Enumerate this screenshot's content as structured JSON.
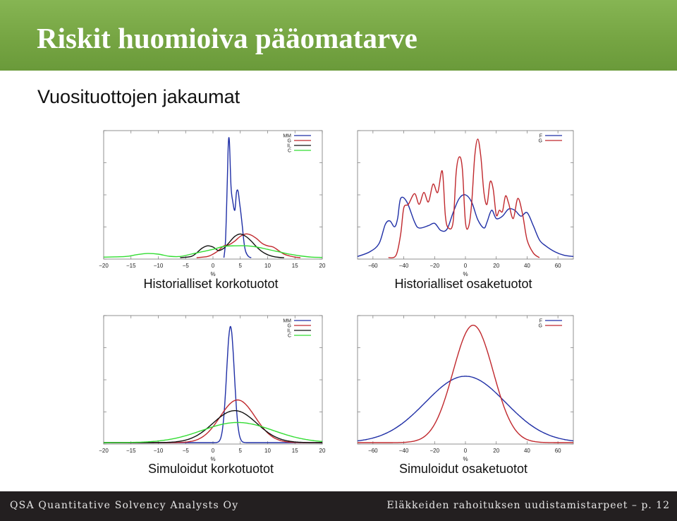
{
  "slide": {
    "title": "Riskit huomioiva pääomatarve",
    "subtitle": "Vuosituottojen jakaumat"
  },
  "footer": {
    "left": "QSA Quantitative Solvency Analysts Oy",
    "right": "Eläkkeiden rahoituksen uudistamistarpeet – p. 12"
  },
  "colors": {
    "title_bar": "#7aab47",
    "footer_bg": "#231f20"
  },
  "chart_data": [
    {
      "type": "line",
      "title": "Historialliset korkotuotot",
      "xlabel": "%",
      "xlim": [
        -20,
        20
      ],
      "xticks": [
        "−20",
        "−15",
        "−10",
        "−5",
        "0",
        "5",
        "10",
        "15",
        "20"
      ],
      "legend_position": "top-right",
      "series": [
        {
          "name": "MM",
          "color": "#1f2fa6",
          "x": [
            2,
            2.3,
            2.6,
            2.8,
            3,
            3.3,
            3.6,
            4,
            4.3,
            4.6,
            4.9,
            5.1,
            5.4,
            5.7,
            6,
            6.5,
            7
          ],
          "y": [
            0,
            0.15,
            0.6,
            0.95,
            0.98,
            0.6,
            0.48,
            0.4,
            0.55,
            0.56,
            0.45,
            0.38,
            0.25,
            0.12,
            0.05,
            0.01,
            0
          ]
        },
        {
          "name": "G",
          "color": "#c0282d",
          "x": [
            -3,
            -1,
            0,
            1,
            2,
            3,
            4,
            5,
            6,
            7,
            8,
            9,
            10,
            11,
            12,
            13,
            14,
            15,
            16
          ],
          "y": [
            0,
            0.01,
            0.03,
            0.06,
            0.1,
            0.11,
            0.14,
            0.18,
            0.2,
            0.19,
            0.16,
            0.12,
            0.1,
            0.09,
            0.06,
            0.03,
            0.015,
            0.005,
            0
          ]
        },
        {
          "name": "IL",
          "color": "#111111",
          "x": [
            -6,
            -4,
            -3,
            -2,
            -1,
            0,
            1,
            2,
            3,
            4,
            5,
            6,
            7,
            8,
            9,
            10,
            11,
            12,
            13
          ],
          "y": [
            0,
            0.01,
            0.04,
            0.08,
            0.1,
            0.09,
            0.06,
            0.08,
            0.13,
            0.18,
            0.2,
            0.18,
            0.14,
            0.09,
            0.05,
            0.025,
            0.01,
            0.003,
            0
          ]
        },
        {
          "name": "C",
          "color": "#33dd33",
          "x": [
            -20,
            -16,
            -14,
            -12,
            -10,
            -8,
            -6,
            -4,
            -2,
            0,
            2,
            4,
            6,
            8,
            10,
            12,
            14,
            16,
            18,
            20
          ],
          "y": [
            0.005,
            0.01,
            0.025,
            0.035,
            0.03,
            0.012,
            0.01,
            0.03,
            0.05,
            0.07,
            0.095,
            0.1,
            0.1,
            0.09,
            0.07,
            0.05,
            0.03,
            0.015,
            0.005,
            0.002
          ]
        }
      ]
    },
    {
      "type": "line",
      "title": "Historialliset osaketuotot",
      "xlabel": "%",
      "xlim": [
        -70,
        70
      ],
      "xticks": [
        "−60",
        "−40",
        "−20",
        "0",
        "20",
        "40",
        "60"
      ],
      "legend_position": "top-right",
      "series": [
        {
          "name": "F",
          "color": "#1f2fa6",
          "x": [
            -70,
            -62,
            -56,
            -52,
            -49,
            -46,
            -44,
            -42,
            -38,
            -33,
            -30,
            -24,
            -20,
            -16,
            -12,
            -8,
            -4,
            0,
            4,
            8,
            12,
            14,
            17,
            20,
            24,
            28,
            32,
            36,
            40,
            44,
            48,
            52,
            58,
            64,
            70
          ],
          "y": [
            0.01,
            0.05,
            0.12,
            0.28,
            0.31,
            0.26,
            0.33,
            0.5,
            0.47,
            0.3,
            0.25,
            0.27,
            0.29,
            0.23,
            0.24,
            0.38,
            0.5,
            0.53,
            0.47,
            0.32,
            0.25,
            0.3,
            0.4,
            0.33,
            0.35,
            0.41,
            0.4,
            0.35,
            0.38,
            0.27,
            0.15,
            0.1,
            0.05,
            0.02,
            0.01
          ]
        },
        {
          "name": "G",
          "color": "#c0282d",
          "x": [
            -50,
            -45,
            -42,
            -40,
            -37,
            -33,
            -30,
            -27,
            -24,
            -21,
            -18,
            -15,
            -13,
            -11,
            -8,
            -6,
            -4,
            -2,
            0,
            2,
            4,
            6,
            8,
            10,
            12,
            14,
            16,
            18,
            20,
            22,
            24,
            26,
            28,
            31,
            34,
            37,
            40,
            44,
            48
          ],
          "y": [
            0,
            0.02,
            0.2,
            0.42,
            0.45,
            0.54,
            0.45,
            0.55,
            0.47,
            0.62,
            0.55,
            0.73,
            0.35,
            0.25,
            0.3,
            0.72,
            0.85,
            0.75,
            0.3,
            0.26,
            0.45,
            0.85,
            1.0,
            0.85,
            0.55,
            0.45,
            0.64,
            0.58,
            0.36,
            0.4,
            0.39,
            0.52,
            0.46,
            0.33,
            0.5,
            0.37,
            0.15,
            0.04,
            0
          ]
        }
      ]
    },
    {
      "type": "line",
      "title": "Simuloidut korkotuotot",
      "xlabel": "%",
      "xlim": [
        -20,
        20
      ],
      "xticks": [
        "−20",
        "−15",
        "−10",
        "−5",
        "0",
        "5",
        "10",
        "15",
        "20"
      ],
      "legend_position": "top-right",
      "series": [
        {
          "name": "MM",
          "color": "#1f2fa6",
          "mean": 3.2,
          "sd": 0.7,
          "peak": 0.98
        },
        {
          "name": "G",
          "color": "#c0282d",
          "mean": 4.5,
          "sd": 3.2,
          "peak": 0.36
        },
        {
          "name": "IL",
          "color": "#111111",
          "mean": 4.0,
          "sd": 4.0,
          "peak": 0.27
        },
        {
          "name": "C",
          "color": "#33dd33",
          "mean": 4.5,
          "sd": 6.5,
          "peak": 0.17
        }
      ]
    },
    {
      "type": "line",
      "title": "Simuloidut osaketuotot",
      "xlabel": "%",
      "xlim": [
        -70,
        70
      ],
      "xticks": [
        "−60",
        "−40",
        "−20",
        "0",
        "20",
        "40",
        "60"
      ],
      "legend_position": "top-right",
      "series": [
        {
          "name": "F",
          "color": "#1f2fa6",
          "mean": 0,
          "sd": 26,
          "peak": 0.56
        },
        {
          "name": "G",
          "color": "#c0282d",
          "mean": 5,
          "sd": 13,
          "peak": 0.99
        }
      ]
    }
  ]
}
